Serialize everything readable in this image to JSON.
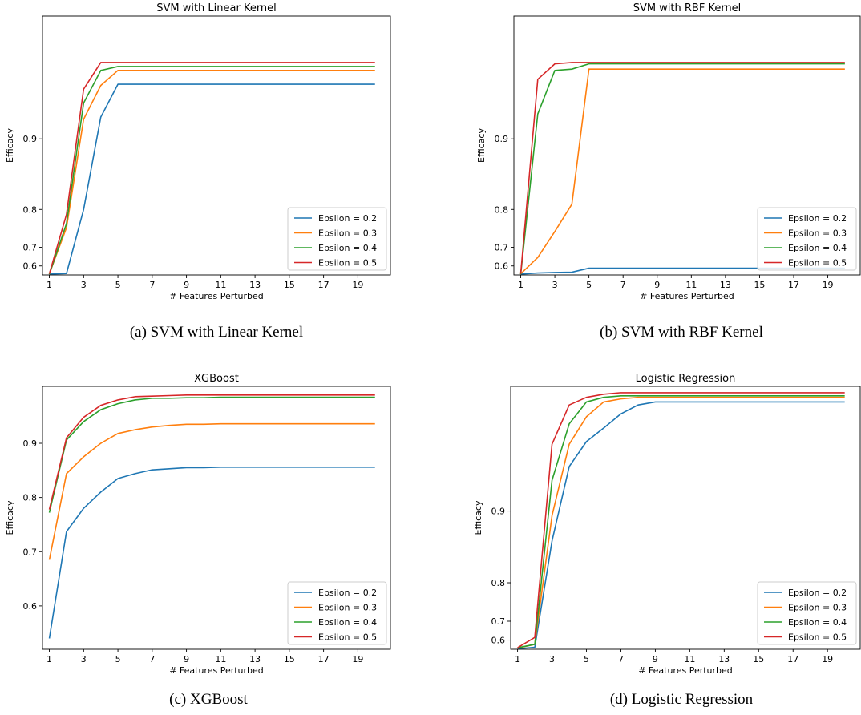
{
  "chart_data": [
    {
      "type": "line",
      "title": "SVM with Linear Kernel",
      "caption": "(a)  SVM with Linear Kernel",
      "xlabel": "# Features Perturbed",
      "ylabel": "Efficacy",
      "xlim": [
        0.6,
        20.9
      ],
      "ylim": [
        0.48,
        1.0
      ],
      "scale": "power",
      "xticks": [
        1,
        3,
        5,
        7,
        9,
        11,
        13,
        15,
        17,
        19
      ],
      "yticks": [
        0.6,
        0.7,
        0.8,
        0.9
      ],
      "x": [
        1,
        2,
        3,
        4,
        5,
        6,
        7,
        8,
        9,
        10,
        11,
        12,
        13,
        14,
        15,
        16,
        17,
        18,
        19,
        20
      ],
      "legend": "lower-right",
      "series": [
        {
          "name": "Epsilon = 0.2",
          "color": "#1f77b4",
          "values": [
            0.5,
            0.51,
            0.8,
            0.922,
            0.951,
            0.951,
            0.951,
            0.951,
            0.951,
            0.951,
            0.951,
            0.951,
            0.951,
            0.951,
            0.951,
            0.951,
            0.951,
            0.951,
            0.951,
            0.951
          ]
        },
        {
          "name": "Epsilon = 0.3",
          "color": "#ff7f0e",
          "values": [
            0.505,
            0.76,
            0.92,
            0.95,
            0.962,
            0.962,
            0.962,
            0.962,
            0.962,
            0.962,
            0.962,
            0.962,
            0.962,
            0.962,
            0.962,
            0.962,
            0.962,
            0.962,
            0.962,
            0.962
          ]
        },
        {
          "name": "Epsilon = 0.4",
          "color": "#2ca02c",
          "values": [
            0.495,
            0.77,
            0.935,
            0.962,
            0.965,
            0.965,
            0.965,
            0.965,
            0.965,
            0.965,
            0.965,
            0.965,
            0.965,
            0.965,
            0.965,
            0.965,
            0.965,
            0.965,
            0.965,
            0.965
          ]
        },
        {
          "name": "Epsilon = 0.5",
          "color": "#d62728",
          "values": [
            0.505,
            0.79,
            0.947,
            0.968,
            0.968,
            0.968,
            0.968,
            0.968,
            0.968,
            0.968,
            0.968,
            0.968,
            0.968,
            0.968,
            0.968,
            0.968,
            0.968,
            0.968,
            0.968,
            0.968
          ]
        }
      ]
    },
    {
      "type": "line",
      "title": "SVM with RBF Kernel",
      "caption": "(b)  SVM with RBF Kernel",
      "xlabel": "# Features Perturbed",
      "ylabel": "Efficacy",
      "xlim": [
        0.6,
        20.9
      ],
      "ylim": [
        0.48,
        1.0
      ],
      "scale": "power",
      "xticks": [
        1,
        3,
        5,
        7,
        9,
        11,
        13,
        15,
        17,
        19
      ],
      "yticks": [
        0.6,
        0.7,
        0.8,
        0.9
      ],
      "x": [
        1,
        2,
        3,
        4,
        5,
        6,
        7,
        8,
        9,
        10,
        11,
        12,
        13,
        14,
        15,
        16,
        17,
        18,
        19,
        20
      ],
      "legend": "lower-right",
      "series": [
        {
          "name": "Epsilon = 0.2",
          "color": "#1f77b4",
          "values": [
            0.5,
            0.52,
            0.528,
            0.532,
            0.58,
            0.58,
            0.58,
            0.58,
            0.58,
            0.58,
            0.58,
            0.58,
            0.58,
            0.58,
            0.58,
            0.58,
            0.58,
            0.58,
            0.58,
            0.58
          ]
        },
        {
          "name": "Epsilon = 0.3",
          "color": "#ff7f0e",
          "values": [
            0.505,
            0.655,
            0.75,
            0.81,
            0.963,
            0.963,
            0.963,
            0.963,
            0.963,
            0.963,
            0.963,
            0.963,
            0.963,
            0.963,
            0.963,
            0.963,
            0.963,
            0.963,
            0.963,
            0.963
          ]
        },
        {
          "name": "Epsilon = 0.4",
          "color": "#2ca02c",
          "values": [
            0.495,
            0.925,
            0.962,
            0.963,
            0.967,
            0.967,
            0.967,
            0.967,
            0.967,
            0.967,
            0.967,
            0.967,
            0.967,
            0.967,
            0.967,
            0.967,
            0.967,
            0.967,
            0.967,
            0.967
          ]
        },
        {
          "name": "Epsilon = 0.5",
          "color": "#d62728",
          "values": [
            0.505,
            0.955,
            0.967,
            0.968,
            0.968,
            0.968,
            0.968,
            0.968,
            0.968,
            0.968,
            0.968,
            0.968,
            0.968,
            0.968,
            0.968,
            0.968,
            0.968,
            0.968,
            0.968,
            0.968
          ]
        }
      ]
    },
    {
      "type": "line",
      "title": "XGBoost",
      "caption": "(c)  XGBoost",
      "xlabel": "# Features Perturbed",
      "ylabel": "Efficacy",
      "xlim": [
        0.6,
        20.9
      ],
      "ylim": [
        0.52,
        1.005
      ],
      "scale": "linear",
      "xticks": [
        1,
        3,
        5,
        7,
        9,
        11,
        13,
        15,
        17,
        19
      ],
      "yticks": [
        0.6,
        0.7,
        0.8,
        0.9
      ],
      "x": [
        1,
        2,
        3,
        4,
        5,
        6,
        7,
        8,
        9,
        10,
        11,
        12,
        13,
        14,
        15,
        16,
        17,
        18,
        19,
        20
      ],
      "legend": "lower-right",
      "series": [
        {
          "name": "Epsilon = 0.2",
          "color": "#1f77b4",
          "values": [
            0.54,
            0.737,
            0.78,
            0.81,
            0.835,
            0.844,
            0.851,
            0.853,
            0.855,
            0.855,
            0.856,
            0.856,
            0.856,
            0.856,
            0.856,
            0.856,
            0.856,
            0.856,
            0.856,
            0.856
          ]
        },
        {
          "name": "Epsilon = 0.3",
          "color": "#ff7f0e",
          "values": [
            0.685,
            0.844,
            0.875,
            0.9,
            0.918,
            0.925,
            0.93,
            0.933,
            0.935,
            0.935,
            0.936,
            0.936,
            0.936,
            0.936,
            0.936,
            0.936,
            0.936,
            0.936,
            0.936,
            0.936
          ]
        },
        {
          "name": "Epsilon = 0.4",
          "color": "#2ca02c",
          "values": [
            0.772,
            0.906,
            0.94,
            0.962,
            0.973,
            0.98,
            0.983,
            0.983,
            0.984,
            0.984,
            0.985,
            0.985,
            0.985,
            0.985,
            0.985,
            0.985,
            0.985,
            0.985,
            0.985,
            0.985
          ]
        },
        {
          "name": "Epsilon = 0.5",
          "color": "#d62728",
          "values": [
            0.778,
            0.91,
            0.948,
            0.97,
            0.98,
            0.986,
            0.987,
            0.988,
            0.989,
            0.989,
            0.989,
            0.989,
            0.989,
            0.989,
            0.989,
            0.989,
            0.989,
            0.989,
            0.989,
            0.989
          ]
        }
      ]
    },
    {
      "type": "line",
      "title": "Logistic Regression",
      "caption": "(d)  Logistic Regression",
      "xlabel": "# Features Perturbed",
      "ylabel": "Efficacy",
      "xlim": [
        0.6,
        20.9
      ],
      "ylim": [
        0.48,
        1.0
      ],
      "scale": "power",
      "xticks": [
        1,
        3,
        5,
        7,
        9,
        11,
        13,
        15,
        17,
        19
      ],
      "yticks": [
        0.6,
        0.7,
        0.8,
        0.9
      ],
      "x": [
        1,
        2,
        3,
        4,
        5,
        6,
        7,
        8,
        9,
        10,
        11,
        12,
        13,
        14,
        15,
        16,
        17,
        18,
        19,
        20
      ],
      "legend": "lower-right",
      "series": [
        {
          "name": "Epsilon = 0.2",
          "color": "#1f77b4",
          "values": [
            0.49,
            0.52,
            0.865,
            0.942,
            0.962,
            0.972,
            0.982,
            0.988,
            0.99,
            0.99,
            0.99,
            0.99,
            0.99,
            0.99,
            0.99,
            0.99,
            0.99,
            0.99,
            0.99,
            0.99
          ]
        },
        {
          "name": "Epsilon = 0.3",
          "color": "#ff7f0e",
          "values": [
            0.505,
            0.56,
            0.895,
            0.96,
            0.98,
            0.99,
            0.992,
            0.993,
            0.993,
            0.993,
            0.993,
            0.993,
            0.993,
            0.993,
            0.993,
            0.993,
            0.993,
            0.993,
            0.993,
            0.993
          ]
        },
        {
          "name": "Epsilon = 0.4",
          "color": "#2ca02c",
          "values": [
            0.51,
            0.56,
            0.93,
            0.975,
            0.99,
            0.993,
            0.994,
            0.994,
            0.994,
            0.994,
            0.994,
            0.994,
            0.994,
            0.994,
            0.994,
            0.994,
            0.994,
            0.994,
            0.994,
            0.994
          ]
        },
        {
          "name": "Epsilon = 0.5",
          "color": "#d62728",
          "values": [
            0.512,
            0.62,
            0.96,
            0.988,
            0.993,
            0.995,
            0.996,
            0.996,
            0.996,
            0.996,
            0.996,
            0.996,
            0.996,
            0.996,
            0.996,
            0.996,
            0.996,
            0.996,
            0.996,
            0.996
          ]
        }
      ]
    }
  ]
}
